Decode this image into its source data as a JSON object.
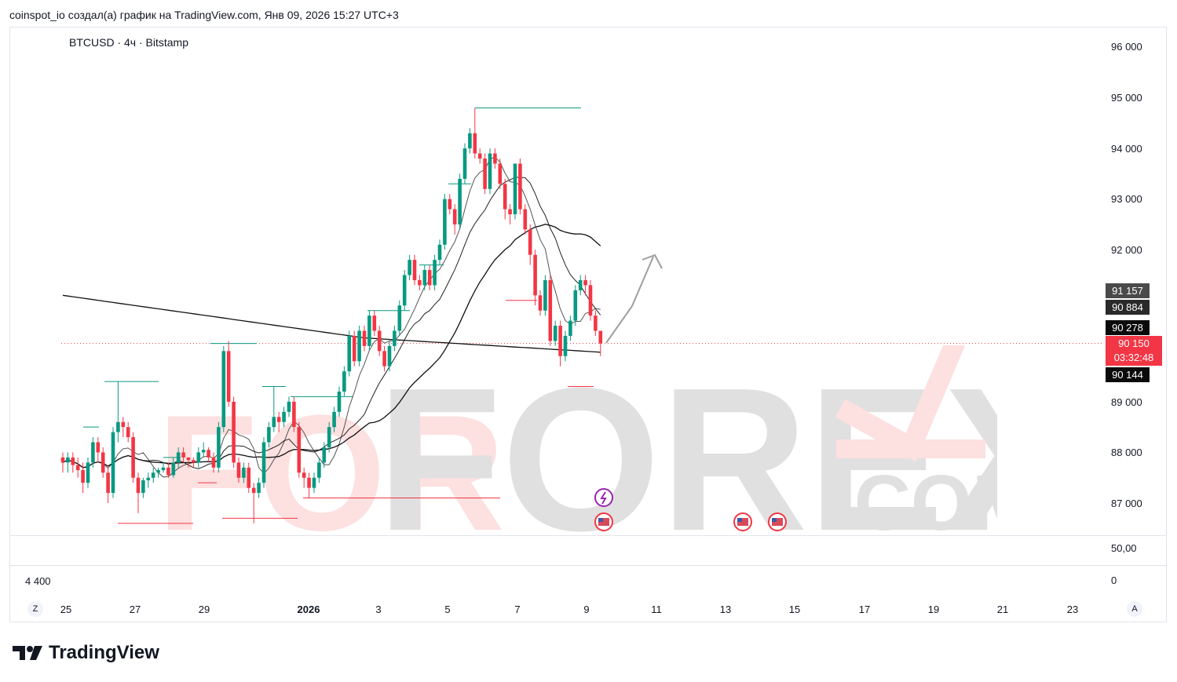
{
  "header": {
    "credit": "coinspot_io создал(а) график на TradingView.com, Янв 09, 2026 15:27 UTC+3"
  },
  "symbol_line": "BTCUSD · 4ч · Bitstamp",
  "price_axis": [
    "96 000",
    "95 000",
    "94 000",
    "93 000",
    "92 000",
    "89 000",
    "88 000",
    "87 000"
  ],
  "indicator_axis": {
    "value": "50,00",
    "volume_left": "4 400",
    "volume_right": "0"
  },
  "time_axis": [
    "25",
    "27",
    "29",
    "2026",
    "3",
    "5",
    "7",
    "9",
    "11",
    "13",
    "15",
    "17",
    "19",
    "21",
    "23"
  ],
  "time_axis_bold": "2026",
  "tags": [
    {
      "label": "91 157",
      "color": "#4a4a4a"
    },
    {
      "label": "90 884",
      "color": "#2a2a2a"
    },
    {
      "label": "90 278",
      "color": "#0b0b0b"
    },
    {
      "label": "90 144",
      "color": "#0b0b0b"
    }
  ],
  "last_price": {
    "price": "90 150",
    "countdown": "03:32:48",
    "color": "#f23645"
  },
  "corner_buttons": {
    "left": "Z",
    "right": "A"
  },
  "watermark": {
    "text_part1": "FOR",
    "text_part2": "FOREX",
    "text_part3": ".COM"
  },
  "logo": {
    "text": "TradingView"
  },
  "colors": {
    "up": "#089981",
    "down": "#f23645"
  },
  "chart_data": {
    "type": "candlestick",
    "title": "BTCUSD · 4ч · Bitstamp",
    "ylim": [
      86300,
      96500
    ],
    "close": [
      87800,
      87900,
      87750,
      87650,
      87400,
      87800,
      88200,
      88000,
      87600,
      87200,
      88400,
      88600,
      88500,
      88300,
      87500,
      87200,
      87450,
      87500,
      87600,
      87650,
      87700,
      87550,
      87800,
      88000,
      87900,
      87850,
      87800,
      88000,
      88050,
      87900,
      87700,
      88500,
      90000,
      89000,
      87800,
      87500,
      87700,
      87300,
      87200,
      87400,
      88200,
      88500,
      88700,
      88600,
      88800,
      89000,
      88500,
      87600,
      87500,
      87300,
      87500,
      87800,
      88100,
      88500,
      88800,
      89200,
      89600,
      90300,
      89800,
      90400,
      90100,
      90700,
      90400,
      90000,
      89700,
      90100,
      90400,
      90900,
      91500,
      91800,
      91400,
      91300,
      91600,
      91300,
      91800,
      92100,
      93000,
      92800,
      92500,
      93400,
      94000,
      94300,
      93900,
      93800,
      93200,
      93900,
      93700,
      93300,
      92800,
      92700,
      93700,
      92800,
      92400,
      91900,
      91100,
      90800,
      91400,
      90200,
      90500,
      89900,
      90300,
      90600,
      91200,
      91400,
      91300,
      90700,
      90400,
      90150
    ],
    "open": [
      87900,
      87800,
      87900,
      87750,
      87650,
      87400,
      87800,
      88200,
      88000,
      87600,
      87200,
      88400,
      88600,
      88500,
      88300,
      87500,
      87200,
      87450,
      87500,
      87600,
      87650,
      87700,
      87550,
      87800,
      88000,
      87900,
      87850,
      87800,
      88000,
      88050,
      87900,
      87700,
      88500,
      90000,
      89000,
      87800,
      87500,
      87700,
      87300,
      87200,
      87400,
      88200,
      88500,
      88700,
      88600,
      88800,
      89000,
      88500,
      87600,
      87500,
      87300,
      87500,
      87800,
      88100,
      88500,
      88800,
      89200,
      89600,
      90300,
      89800,
      90400,
      90100,
      90700,
      90400,
      90000,
      89700,
      90100,
      90400,
      90900,
      91500,
      91800,
      91400,
      91300,
      91600,
      91300,
      91800,
      92100,
      93000,
      92800,
      92500,
      93400,
      94000,
      94300,
      93900,
      93800,
      93200,
      93900,
      93700,
      93300,
      92800,
      92700,
      93700,
      92800,
      92400,
      91900,
      91100,
      90800,
      91400,
      90200,
      90500,
      89900,
      90300,
      90600,
      91200,
      91400,
      91300,
      90700,
      90400
    ],
    "high": [
      88000,
      88000,
      88000,
      87900,
      87800,
      87900,
      88300,
      88300,
      88100,
      87700,
      88500,
      89400,
      88700,
      88600,
      88400,
      87600,
      87500,
      87600,
      87700,
      87700,
      87800,
      87800,
      87900,
      88100,
      88100,
      87900,
      87900,
      88100,
      88200,
      88100,
      88000,
      88600,
      90100,
      90200,
      89100,
      87900,
      87800,
      87800,
      87400,
      87500,
      88300,
      88600,
      89300,
      88800,
      88900,
      89100,
      89100,
      88600,
      87700,
      87600,
      87600,
      87900,
      88200,
      88600,
      88900,
      89300,
      89700,
      90400,
      90400,
      90500,
      90500,
      90800,
      90800,
      90500,
      90100,
      90200,
      90500,
      91000,
      91600,
      91900,
      91900,
      91500,
      91700,
      91700,
      91900,
      92200,
      93100,
      93100,
      92900,
      93500,
      94100,
      94400,
      94800,
      94000,
      93900,
      94000,
      94000,
      93800,
      93400,
      92900,
      93700,
      93800,
      92900,
      92500,
      92000,
      91200,
      91500,
      91500,
      90600,
      90600,
      90400,
      90700,
      91300,
      91500,
      91500,
      91400,
      90800,
      90300
    ],
    "low": [
      87600,
      87600,
      87600,
      87500,
      87200,
      87300,
      87700,
      87800,
      87500,
      87000,
      87100,
      88200,
      88300,
      88200,
      87400,
      86800,
      87100,
      87300,
      87400,
      87500,
      87600,
      87500,
      87500,
      87700,
      87800,
      87700,
      87700,
      87700,
      87900,
      87800,
      87600,
      87600,
      88400,
      88900,
      87700,
      87400,
      87400,
      87200,
      86600,
      87100,
      87300,
      88100,
      88400,
      88400,
      88500,
      88700,
      88400,
      87500,
      87300,
      87100,
      87200,
      87400,
      87700,
      88000,
      88400,
      88700,
      89100,
      89500,
      89700,
      89700,
      90000,
      90000,
      90300,
      89900,
      89600,
      89600,
      90000,
      90300,
      90800,
      91400,
      91300,
      91200,
      91200,
      91200,
      91200,
      91700,
      92000,
      92700,
      92300,
      92400,
      93300,
      93900,
      93800,
      93700,
      93100,
      93100,
      93600,
      93200,
      92600,
      92500,
      92600,
      92700,
      92300,
      91700,
      90900,
      90700,
      90700,
      90100,
      90100,
      89700,
      89800,
      90200,
      90500,
      91100,
      91100,
      90600,
      90300,
      89900
    ]
  }
}
